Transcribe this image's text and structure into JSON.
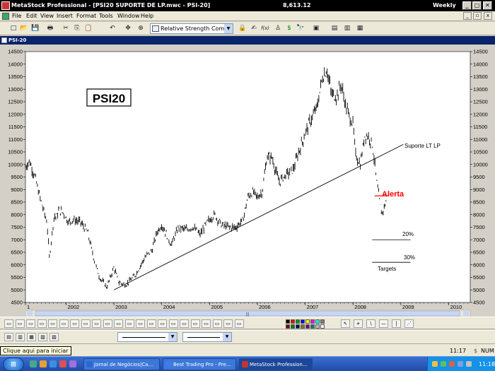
{
  "app": {
    "title": "MetaStock Professional - [PSI20 SUPORTE DE LP.mwc - PSI-20]",
    "price": "8,613.12",
    "period": "Weekly",
    "window_buttons": [
      "_",
      "▢",
      "✕"
    ],
    "doc_buttons": [
      "_",
      "▫",
      "x"
    ]
  },
  "menu": {
    "items": [
      "File",
      "Edit",
      "View",
      "Insert",
      "Format",
      "Tools",
      "Window",
      "Help"
    ]
  },
  "toolbar": {
    "icons_left": [
      "new-icon",
      "open-icon",
      "save-icon",
      "print-icon",
      "cut-icon",
      "copy-icon",
      "paste-icon",
      "undo-icon",
      "move-icon",
      "zoom-icon"
    ],
    "glyphs_left": [
      "□",
      "📂",
      "💾",
      "🖶",
      "✂",
      "⎘",
      "📋",
      "↶",
      "✥",
      "⊕"
    ],
    "indicator_select": "Relative Strength Comparati",
    "icons_right": [
      "explorer-icon",
      "expert-icon",
      "formula-icon",
      "system-icon",
      "dollar-icon",
      "binoculars-icon",
      "layout-1-icon",
      "layout-2-icon",
      "layout-3-icon",
      "layout-4-icon"
    ],
    "glyphs_right": [
      "🔒",
      "✍",
      "f(x)",
      "♙",
      "$",
      "🔭",
      "▣",
      "▤",
      "▥",
      "▦"
    ]
  },
  "chart": {
    "window_title": "PSI-20",
    "symbol_label": "PSI20",
    "support_label": "Suporte LT LP",
    "alert_label": "Alerta",
    "target_20_label": "20%",
    "target_30_label": "30%",
    "targets_label": "Targets",
    "scroll_thumb_glyph": "|||",
    "alert_color": "#ff0000",
    "line_color": "#000000"
  },
  "chart_data": {
    "type": "line",
    "title": "",
    "symbol": "PSI20",
    "frequency": "Weekly",
    "x_range": [
      2001.0,
      2010.3
    ],
    "x_ticks": [
      "1",
      "2002",
      "2003",
      "2004",
      "2005",
      "2006",
      "2007",
      "2008",
      "2009",
      "2010"
    ],
    "x_tick_values": [
      2001.0,
      2001.85,
      2002.85,
      2003.85,
      2004.85,
      2005.85,
      2006.85,
      2007.85,
      2008.85,
      2009.85
    ],
    "y_range": [
      4500,
      14500
    ],
    "y_ticks": [
      4500,
      5000,
      5500,
      6000,
      6500,
      7000,
      7500,
      8000,
      8500,
      9000,
      9500,
      10000,
      10500,
      11000,
      11500,
      12000,
      12500,
      13000,
      13500,
      14000,
      14500
    ],
    "y_axes": [
      "left",
      "right"
    ],
    "grid": false,
    "series": [
      {
        "x": [
          2001.0,
          2001.08,
          2001.2,
          2001.3,
          2001.45,
          2001.5,
          2001.6,
          2001.65,
          2001.7,
          2001.8,
          2001.9,
          2002.0,
          2002.15,
          2002.3,
          2002.45,
          2002.55,
          2002.7,
          2002.85,
          2002.95,
          2003.1,
          2003.3,
          2003.5,
          2003.65,
          2003.75,
          2003.85,
          2003.95,
          2004.05,
          2004.2,
          2004.35,
          2004.5,
          2004.65,
          2004.8,
          2004.95,
          2005.1,
          2005.25,
          2005.4,
          2005.55,
          2005.65,
          2005.75,
          2005.85,
          2005.95,
          2006.05,
          2006.15,
          2006.3,
          2006.45,
          2006.6,
          2006.75,
          2006.9,
          2007.0,
          2007.1,
          2007.2,
          2007.3,
          2007.4,
          2007.5,
          2007.6,
          2007.7,
          2007.8,
          2007.85,
          2007.9,
          2008.0,
          2008.1,
          2008.18,
          2008.25,
          2008.3,
          2008.35,
          2008.45,
          2008.55
        ],
        "y": [
          9900,
          10150,
          9500,
          8700,
          7700,
          6300,
          7950,
          7900,
          8200,
          8050,
          7700,
          7800,
          7700,
          7300,
          6100,
          5500,
          5100,
          5900,
          5300,
          5200,
          5600,
          6300,
          6600,
          7300,
          7600,
          7200,
          6800,
          7500,
          7400,
          7500,
          7200,
          7700,
          8000,
          7600,
          7500,
          7500,
          7800,
          8700,
          8900,
          8700,
          8900,
          10300,
          10300,
          9300,
          9600,
          9800,
          10700,
          11500,
          11900,
          12300,
          13400,
          13800,
          12800,
          12700,
          13200,
          12300,
          11800,
          11600,
          10400,
          10000,
          11200,
          11100,
          10800,
          10100,
          9200,
          8000,
          8600
        ]
      }
    ],
    "annotations": [
      {
        "type": "trendline",
        "label": "Suporte LT LP",
        "from": [
          2002.85,
          5000
        ],
        "to": [
          2008.9,
          10800
        ]
      },
      {
        "type": "hline",
        "label": "Alerta",
        "y": 8750,
        "x_from": 2008.3,
        "x_to": 2008.6,
        "color": "#ff0000"
      },
      {
        "type": "hline",
        "label": "20%",
        "y": 7000,
        "x_from": 2008.25,
        "x_to": 2009.05
      },
      {
        "type": "hline",
        "label": "30%",
        "y": 6100,
        "x_from": 2008.25,
        "x_to": 2009.05
      },
      {
        "type": "text",
        "label": "Targets"
      }
    ]
  },
  "bottom_toolbar_1": {
    "buttons": [
      "indicator-1-icon",
      "indicator-2-icon",
      "indicator-3-icon",
      "indicator-4-icon",
      "indicator-5-icon",
      "indicator-6-icon",
      "indicator-7-icon",
      "indicator-8-icon",
      "indicator-9-icon",
      "indicator-10-icon",
      "indicator-11-icon",
      "indicator-12-icon",
      "indicator-13-icon",
      "indicator-14-icon",
      "indicator-15-icon",
      "indicator-16-icon",
      "indicator-17-icon",
      "indicator-18-icon",
      "indicator-19-icon",
      "indicator-20-icon",
      "indicator-21-icon",
      "indicator-22-icon"
    ],
    "swatch_colors": [
      "#000000",
      "#ff0000",
      "#00a000",
      "#0000ff",
      "#ffff00",
      "#ff00ff",
      "#00ffff",
      "#808080",
      "#800000",
      "#008000",
      "#000080",
      "#808000",
      "#800080",
      "#008080",
      "#c0c0c0",
      "#ffffff"
    ],
    "drawing_tools": [
      {
        "name": "pointer-icon",
        "glyph": "↖"
      },
      {
        "name": "crosshair-icon",
        "glyph": "+"
      },
      {
        "name": "trendline-icon",
        "glyph": "\\"
      },
      {
        "name": "horizontal-line-icon",
        "glyph": "—"
      },
      {
        "name": "vertical-line-icon",
        "glyph": "|"
      },
      {
        "name": "more-tools-icon",
        "glyph": "⋰"
      }
    ]
  },
  "status": {
    "tooltip": "Clique aqui para iniciar",
    "time": "11:17",
    "dollar": "$",
    "num": "NUM"
  },
  "taskbar": {
    "start_glyph": "⊞",
    "tasks": [
      {
        "label": "Jornal de Negócios|Ca...",
        "color": "#2a6ad0"
      },
      {
        "label": "Best Trading Pro - Pre...",
        "color": "#3d7de8"
      },
      {
        "label": "MetaStock Profession...",
        "color": "#c33333"
      }
    ],
    "clock": "11:18"
  }
}
